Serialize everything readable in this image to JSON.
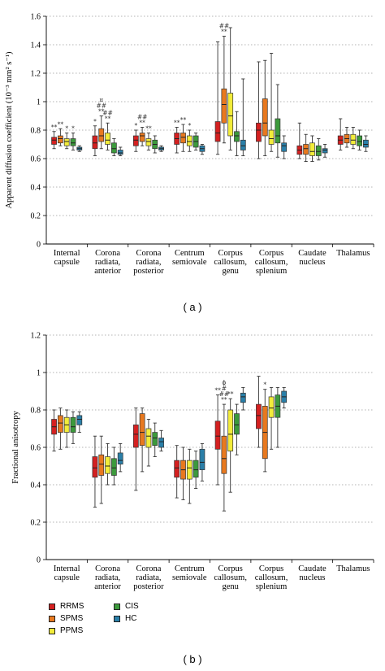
{
  "chart_data": [
    {
      "panel": "(a)",
      "type": "boxplot",
      "ylabel": "Apparent diffusion coefficient (10⁻³ mm² s⁻¹)",
      "ylim": [
        0,
        1.6
      ],
      "yticks": [
        "0",
        "0.2",
        "0.4",
        "0.6",
        "0.8",
        "1",
        "1.2",
        "1.4",
        "1.6"
      ],
      "grid": "horizontal-dotted",
      "categories": [
        [
          "Internal",
          "capsule"
        ],
        [
          "Corona",
          "radiata,",
          "anterior"
        ],
        [
          "Corona",
          "radiata,",
          "posterior"
        ],
        [
          "Centrum",
          "semiovale"
        ],
        [
          "Corpus",
          "callosum,",
          "genu"
        ],
        [
          "Corpus",
          "callosum,",
          "splenium"
        ],
        [
          "Caudate",
          "nucleus"
        ],
        [
          "Thalamus"
        ]
      ],
      "series": [
        {
          "name": "RRMS",
          "boxes": [
            [
              0.67,
              0.7,
              0.73,
              0.75,
              0.79
            ],
            [
              0.62,
              0.67,
              0.71,
              0.76,
              0.83
            ],
            [
              0.65,
              0.69,
              0.73,
              0.76,
              0.8
            ],
            [
              0.64,
              0.7,
              0.74,
              0.78,
              0.82
            ],
            [
              0.63,
              0.72,
              0.78,
              0.86,
              1.42
            ],
            [
              0.6,
              0.72,
              0.8,
              0.85,
              1.28
            ],
            [
              0.6,
              0.63,
              0.66,
              0.69,
              0.85
            ],
            [
              0.66,
              0.7,
              0.73,
              0.76,
              0.88
            ]
          ]
        },
        {
          "name": "SPMS",
          "boxes": [
            [
              0.69,
              0.71,
              0.74,
              0.76,
              0.81
            ],
            [
              0.67,
              0.72,
              0.76,
              0.81,
              0.9
            ],
            [
              0.69,
              0.72,
              0.76,
              0.78,
              0.82
            ],
            [
              0.65,
              0.71,
              0.75,
              0.78,
              0.84
            ],
            [
              0.71,
              0.85,
              0.98,
              1.09,
              1.46
            ],
            [
              0.62,
              0.76,
              0.85,
              1.02,
              1.29
            ],
            [
              0.58,
              0.63,
              0.67,
              0.7,
              0.77
            ],
            [
              0.68,
              0.71,
              0.74,
              0.77,
              0.82
            ]
          ]
        },
        {
          "name": "PPMS",
          "boxes": [
            [
              0.67,
              0.69,
              0.72,
              0.74,
              0.78
            ],
            [
              0.66,
              0.7,
              0.73,
              0.78,
              0.85
            ],
            [
              0.66,
              0.69,
              0.72,
              0.74,
              0.78
            ],
            [
              0.65,
              0.69,
              0.72,
              0.76,
              0.8
            ],
            [
              0.66,
              0.76,
              0.9,
              1.06,
              1.52
            ],
            [
              0.65,
              0.7,
              0.74,
              0.8,
              1.34
            ],
            [
              0.58,
              0.62,
              0.65,
              0.71,
              0.76
            ],
            [
              0.67,
              0.7,
              0.73,
              0.77,
              0.82
            ]
          ]
        },
        {
          "name": "CIS",
          "boxes": [
            [
              0.66,
              0.69,
              0.71,
              0.74,
              0.78
            ],
            [
              0.62,
              0.64,
              0.67,
              0.71,
              0.74
            ],
            [
              0.64,
              0.67,
              0.7,
              0.73,
              0.76
            ],
            [
              0.66,
              0.68,
              0.72,
              0.76,
              0.78
            ],
            [
              0.62,
              0.72,
              0.76,
              0.79,
              0.93
            ],
            [
              0.61,
              0.71,
              0.76,
              0.88,
              1.12
            ],
            [
              0.59,
              0.62,
              0.65,
              0.69,
              0.74
            ],
            [
              0.66,
              0.69,
              0.72,
              0.76,
              0.8
            ]
          ]
        },
        {
          "name": "HC",
          "boxes": [
            [
              0.65,
              0.66,
              0.67,
              0.68,
              0.69
            ],
            [
              0.62,
              0.63,
              0.64,
              0.66,
              0.68
            ],
            [
              0.65,
              0.66,
              0.67,
              0.68,
              0.69
            ],
            [
              0.63,
              0.65,
              0.67,
              0.69,
              0.7
            ],
            [
              0.62,
              0.66,
              0.69,
              0.73,
              1.16
            ],
            [
              0.6,
              0.65,
              0.69,
              0.71,
              0.76
            ],
            [
              0.61,
              0.64,
              0.66,
              0.67,
              0.7
            ],
            [
              0.65,
              0.68,
              0.7,
              0.73,
              0.76
            ]
          ]
        }
      ],
      "annotations": [
        {
          "category": 0,
          "series": 0,
          "text": "**"
        },
        {
          "category": 0,
          "series": 1,
          "text": "**"
        },
        {
          "category": 0,
          "series": 2,
          "text": "*"
        },
        {
          "category": 0,
          "series": 3,
          "text": "*"
        },
        {
          "category": 1,
          "series": 0,
          "text": "*"
        },
        {
          "category": 1,
          "series": 1,
          "text": [
            "¤",
            "##",
            "**"
          ]
        },
        {
          "category": 1,
          "series": 2,
          "text": [
            "##",
            "**"
          ]
        },
        {
          "category": 2,
          "series": 0,
          "text": "*"
        },
        {
          "category": 2,
          "series": 1,
          "text": [
            "##",
            "**"
          ]
        },
        {
          "category": 2,
          "series": 2,
          "text": "**"
        },
        {
          "category": 3,
          "series": 0,
          "text": "**"
        },
        {
          "category": 3,
          "series": 1,
          "text": "**"
        },
        {
          "category": 3,
          "series": 2,
          "text": "*"
        },
        {
          "category": 4,
          "series": 1,
          "text": [
            "##",
            "**"
          ]
        }
      ]
    },
    {
      "panel": "(b)",
      "type": "boxplot",
      "ylabel": "Fractional anisotropy",
      "ylim": [
        0,
        1.2
      ],
      "yticks": [
        "0",
        "0.2",
        "0.4",
        "0.6",
        "0.8",
        "1",
        "1.2"
      ],
      "grid": "horizontal-dotted",
      "categories": [
        [
          "Internal",
          "capsule"
        ],
        [
          "Corona",
          "radiata,",
          "anterior"
        ],
        [
          "Corona",
          "radiata,",
          "posterior"
        ],
        [
          "Centrum",
          "semiovale"
        ],
        [
          "Corpus",
          "callosum,",
          "genu"
        ],
        [
          "Corpus",
          "callosum,",
          "splenium"
        ],
        [
          "Caudate",
          "nucleus"
        ],
        [
          "Thalamus"
        ]
      ],
      "series": [
        {
          "name": "RRMS",
          "boxes": [
            [
              0.58,
              0.67,
              0.71,
              0.75,
              0.8
            ],
            [
              0.28,
              0.44,
              0.49,
              0.55,
              0.66
            ],
            [
              0.37,
              0.6,
              0.67,
              0.72,
              0.81
            ],
            [
              0.33,
              0.44,
              0.49,
              0.53,
              0.61
            ],
            [
              0.4,
              0.59,
              0.66,
              0.74,
              0.88
            ],
            [
              0.6,
              0.7,
              0.77,
              0.83,
              0.98
            ]
          ]
        },
        {
          "name": "SPMS",
          "boxes": [
            [
              0.59,
              0.68,
              0.73,
              0.77,
              0.81
            ],
            [
              0.3,
              0.45,
              0.51,
              0.56,
              0.66
            ],
            [
              0.47,
              0.61,
              0.68,
              0.78,
              0.81
            ],
            [
              0.32,
              0.43,
              0.48,
              0.53,
              0.6
            ],
            [
              0.26,
              0.46,
              0.54,
              0.66,
              0.83
            ],
            [
              0.47,
              0.54,
              0.68,
              0.82,
              0.91
            ]
          ]
        },
        {
          "name": "PPMS",
          "boxes": [
            [
              0.6,
              0.68,
              0.72,
              0.76,
              0.8
            ],
            [
              0.4,
              0.46,
              0.5,
              0.55,
              0.62
            ],
            [
              0.5,
              0.6,
              0.66,
              0.7,
              0.75
            ],
            [
              0.3,
              0.43,
              0.49,
              0.53,
              0.59
            ],
            [
              0.36,
              0.58,
              0.67,
              0.8,
              0.86
            ],
            [
              0.59,
              0.76,
              0.81,
              0.87,
              0.92
            ]
          ]
        },
        {
          "name": "CIS",
          "boxes": [
            [
              0.62,
              0.68,
              0.71,
              0.76,
              0.79
            ],
            [
              0.4,
              0.45,
              0.49,
              0.54,
              0.6
            ],
            [
              0.55,
              0.61,
              0.65,
              0.68,
              0.73
            ],
            [
              0.38,
              0.44,
              0.48,
              0.53,
              0.58
            ],
            [
              0.56,
              0.67,
              0.72,
              0.78,
              0.83
            ],
            [
              0.6,
              0.76,
              0.82,
              0.88,
              0.92
            ]
          ]
        },
        {
          "name": "HC",
          "boxes": [
            [
              0.68,
              0.72,
              0.75,
              0.77,
              0.79
            ],
            [
              0.47,
              0.51,
              0.53,
              0.57,
              0.62
            ],
            [
              0.58,
              0.6,
              0.63,
              0.65,
              0.69
            ],
            [
              0.42,
              0.48,
              0.52,
              0.59,
              0.62
            ],
            [
              0.8,
              0.84,
              0.87,
              0.89,
              0.92
            ],
            [
              0.81,
              0.84,
              0.87,
              0.9,
              0.92
            ]
          ]
        }
      ],
      "annotations": [
        {
          "category": 4,
          "series": 0,
          "text": "**"
        },
        {
          "category": 4,
          "series": 1,
          "text": [
            "ϕ",
            "#",
            "##",
            "**"
          ]
        },
        {
          "category": 4,
          "series": 2,
          "text": "**"
        },
        {
          "category": 5,
          "series": 1,
          "text": "*"
        }
      ]
    }
  ],
  "legend": [
    {
      "name": "RRMS",
      "color": "#d42020"
    },
    {
      "name": "SPMS",
      "color": "#e8791f"
    },
    {
      "name": "PPMS",
      "color": "#f2ec3a"
    },
    {
      "name": "CIS",
      "color": "#3c9a3c"
    },
    {
      "name": "HC",
      "color": "#2a7fa8"
    }
  ],
  "panel_labels": {
    "a": "( a )",
    "b": "( b )"
  }
}
